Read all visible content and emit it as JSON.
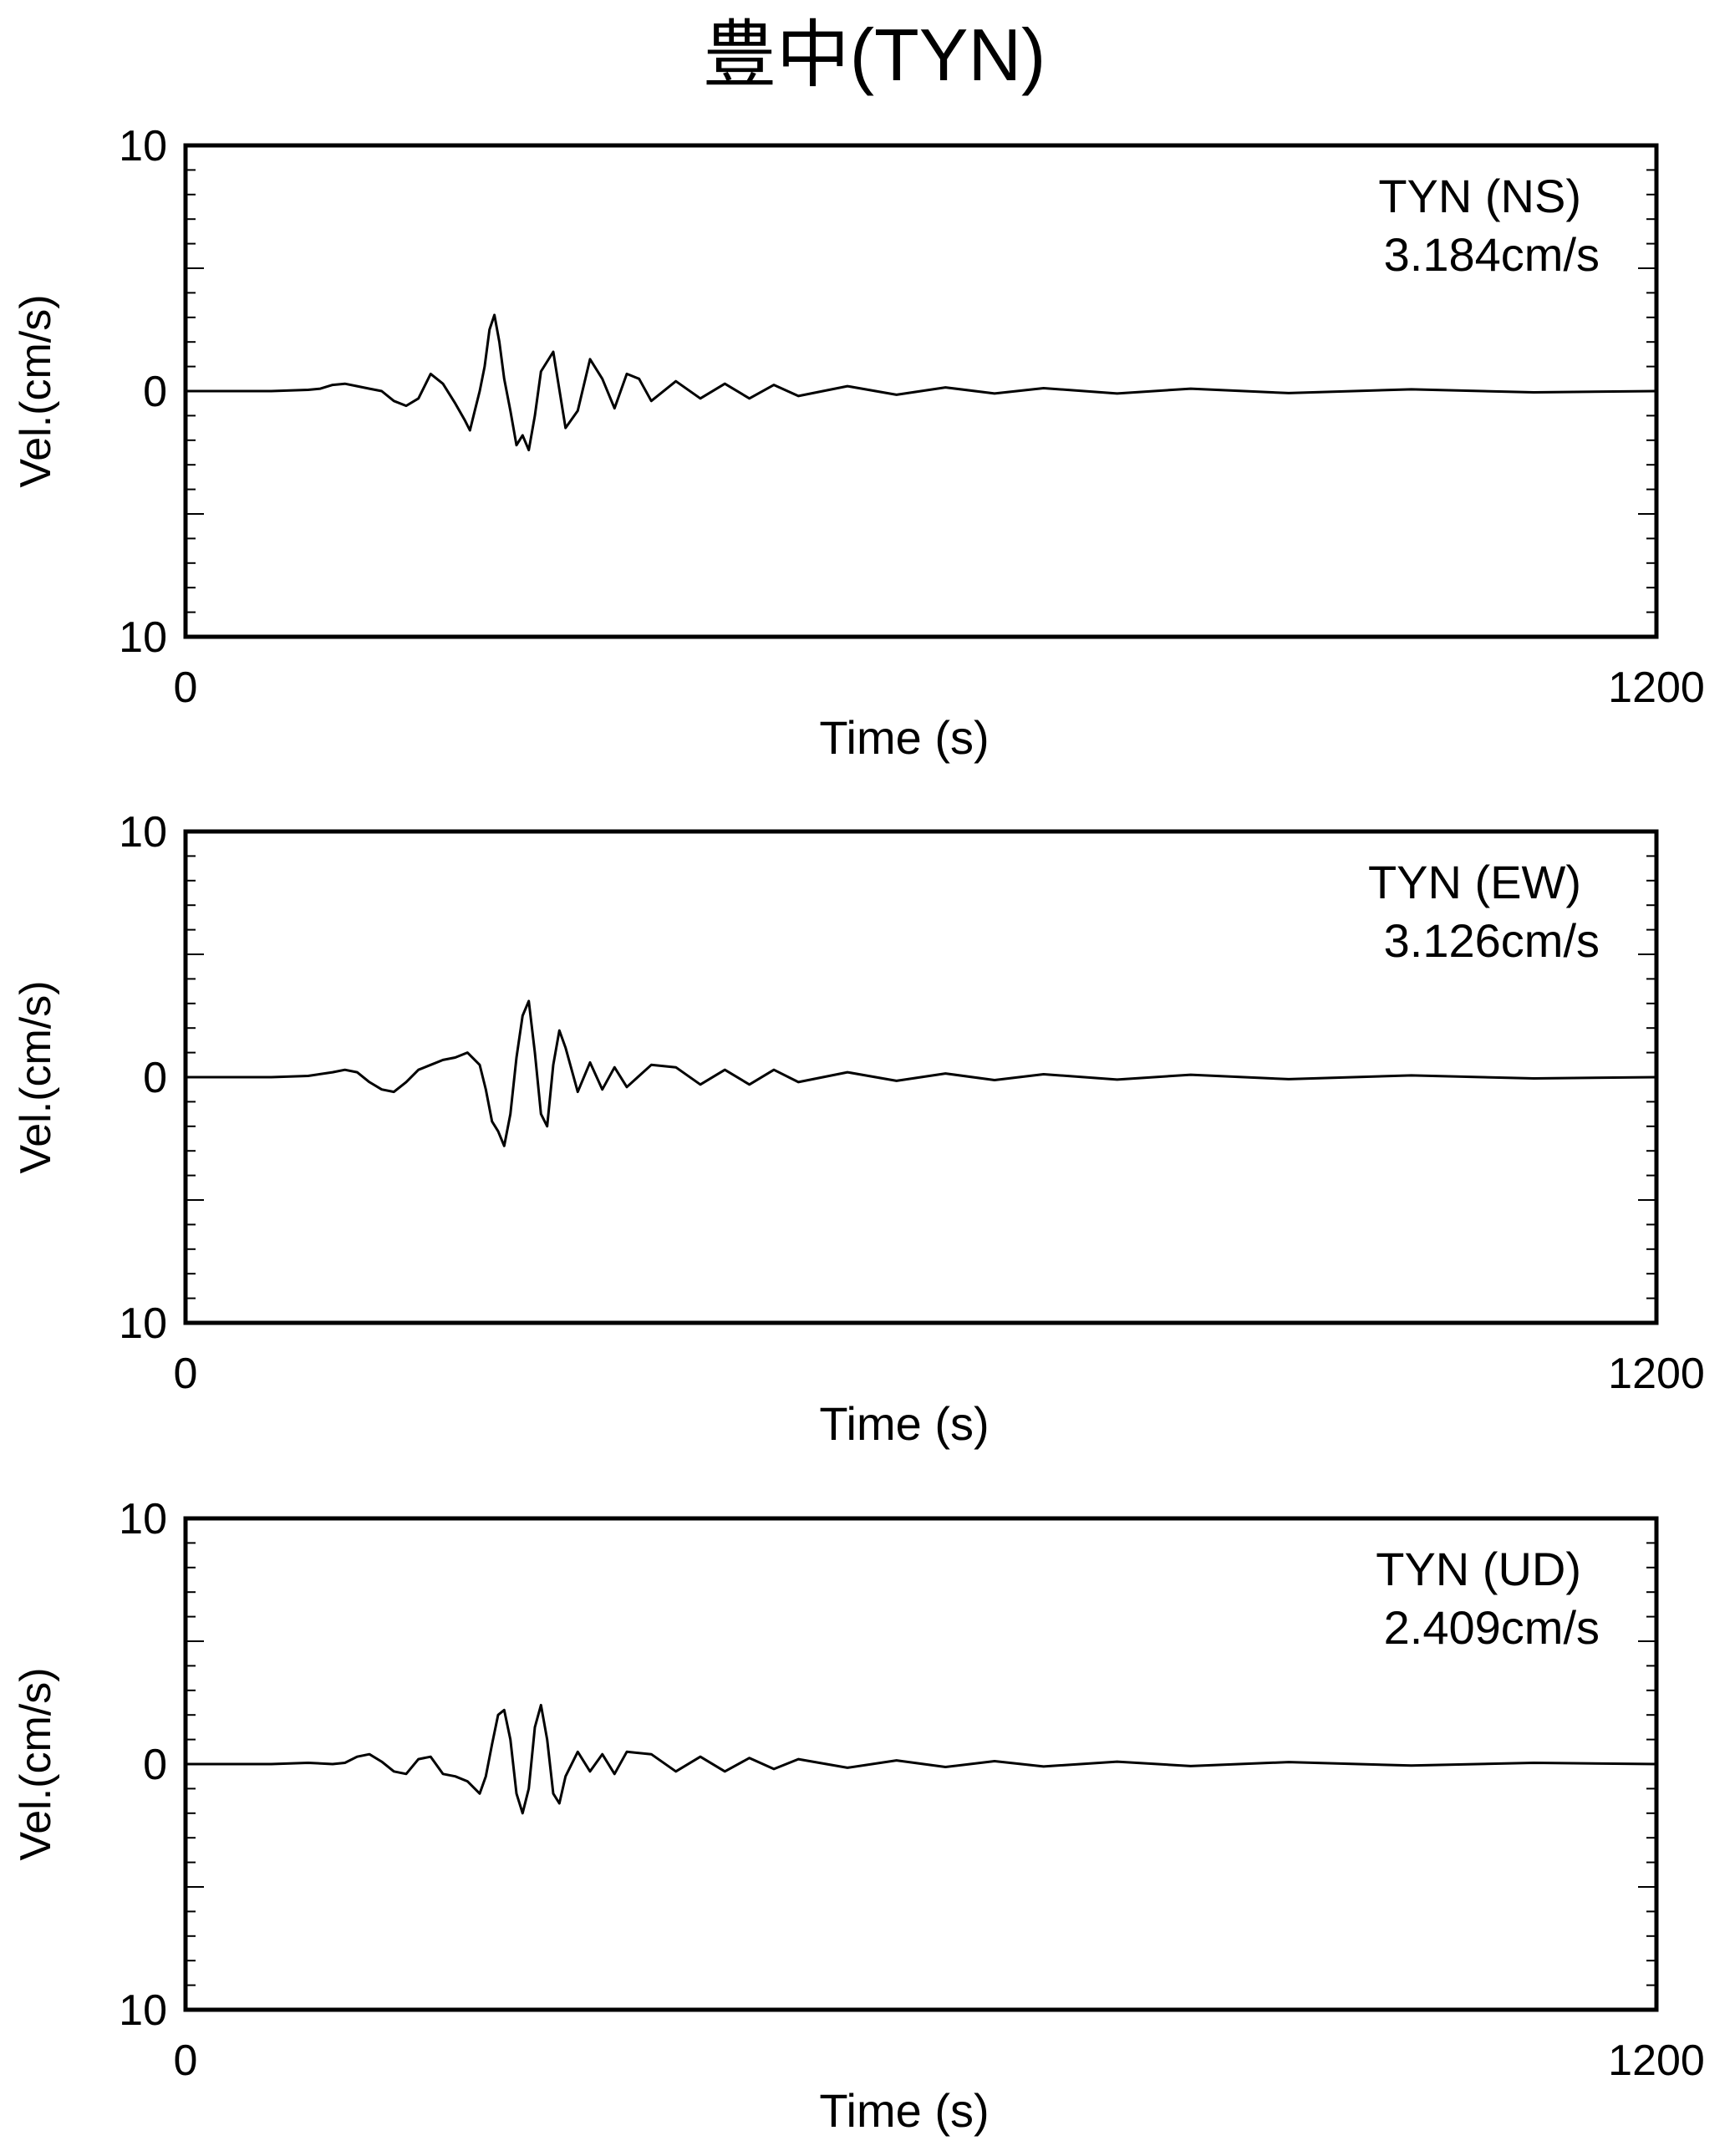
{
  "page": {
    "title": "豊中(TYN)"
  },
  "chart_data": [
    {
      "type": "line",
      "title": "",
      "xlabel": "Time (s)",
      "ylabel": "Vel.(cm/s)",
      "xlim": [
        0,
        1200
      ],
      "ylim": [
        -10,
        10
      ],
      "x_tick_labels": [
        "0",
        "1200"
      ],
      "y_tick_labels": [
        "10",
        "0",
        "10"
      ],
      "annotation_name": "TYN  (NS)",
      "annotation_value": "3.184cm/s",
      "color": "#000000",
      "series": [
        {
          "x": [
            0,
            50,
            70,
            100,
            110,
            120,
            130,
            140,
            150,
            160,
            170,
            180,
            190,
            200,
            210,
            220,
            228,
            232,
            236,
            240,
            244,
            248,
            252,
            256,
            260,
            265,
            270,
            275,
            280,
            285,
            290,
            300,
            310,
            320,
            330,
            340,
            350,
            360,
            370,
            380,
            400,
            420,
            440,
            460,
            480,
            500,
            540,
            580,
            620,
            660,
            700,
            760,
            820,
            900,
            1000,
            1100,
            1200
          ],
          "values": [
            0,
            0,
            0,
            0.05,
            0.1,
            0.25,
            0.3,
            0.2,
            0.1,
            0,
            -0.4,
            -0.6,
            -0.3,
            0.7,
            0.3,
            -0.5,
            -1.2,
            -1.6,
            -0.8,
            0,
            1.0,
            2.5,
            3.1,
            2.0,
            0.5,
            -0.8,
            -2.2,
            -1.8,
            -2.4,
            -1.0,
            0.8,
            1.6,
            -1.5,
            -0.8,
            1.3,
            0.5,
            -0.7,
            0.7,
            0.5,
            -0.4,
            0.4,
            -0.3,
            0.3,
            -0.3,
            0.25,
            -0.2,
            0.2,
            -0.15,
            0.15,
            -0.1,
            0.12,
            -0.1,
            0.1,
            -0.08,
            0.07,
            -0.05,
            0
          ]
        }
      ]
    },
    {
      "type": "line",
      "title": "",
      "xlabel": "Time (s)",
      "ylabel": "Vel.(cm/s)",
      "xlim": [
        0,
        1200
      ],
      "ylim": [
        -10,
        10
      ],
      "x_tick_labels": [
        "0",
        "1200"
      ],
      "y_tick_labels": [
        "10",
        "0",
        "10"
      ],
      "annotation_name": "TYN  (EW)",
      "annotation_value": "3.126cm/s",
      "color": "#000000",
      "series": [
        {
          "x": [
            0,
            50,
            70,
            100,
            120,
            130,
            140,
            150,
            160,
            170,
            180,
            190,
            200,
            210,
            220,
            230,
            240,
            245,
            250,
            255,
            260,
            265,
            270,
            275,
            280,
            285,
            290,
            295,
            300,
            305,
            310,
            320,
            330,
            340,
            350,
            360,
            380,
            400,
            420,
            440,
            460,
            480,
            500,
            540,
            580,
            620,
            660,
            700,
            760,
            820,
            900,
            1000,
            1100,
            1200
          ],
          "values": [
            0,
            0,
            0,
            0.05,
            0.2,
            0.3,
            0.2,
            -0.2,
            -0.5,
            -0.6,
            -0.2,
            0.3,
            0.5,
            0.7,
            0.8,
            1.0,
            0.5,
            -0.5,
            -1.8,
            -2.2,
            -2.8,
            -1.5,
            0.8,
            2.5,
            3.1,
            1.0,
            -1.5,
            -2.0,
            0.5,
            1.9,
            1.2,
            -0.6,
            0.6,
            -0.5,
            0.4,
            -0.4,
            0.5,
            0.4,
            -0.3,
            0.3,
            -0.3,
            0.3,
            -0.2,
            0.2,
            -0.15,
            0.15,
            -0.12,
            0.12,
            -0.1,
            0.1,
            -0.08,
            0.07,
            -0.05,
            0
          ]
        }
      ]
    },
    {
      "type": "line",
      "title": "",
      "xlabel": "Time (s)",
      "ylabel": "Vel.(cm/s)",
      "xlim": [
        0,
        1200
      ],
      "ylim": [
        -10,
        10
      ],
      "x_tick_labels": [
        "0",
        "1200"
      ],
      "y_tick_labels": [
        "10",
        "0",
        "10"
      ],
      "annotation_name": "TYN  (UD)",
      "annotation_value": "2.409cm/s",
      "color": "#000000",
      "series": [
        {
          "x": [
            0,
            50,
            70,
            100,
            120,
            130,
            140,
            150,
            160,
            170,
            180,
            190,
            200,
            210,
            220,
            230,
            240,
            245,
            250,
            255,
            260,
            265,
            270,
            275,
            280,
            285,
            290,
            295,
            300,
            305,
            310,
            320,
            330,
            340,
            350,
            360,
            380,
            400,
            420,
            440,
            460,
            480,
            500,
            540,
            580,
            620,
            660,
            700,
            760,
            820,
            900,
            1000,
            1100,
            1200
          ],
          "values": [
            0,
            0,
            0,
            0.05,
            0,
            0.05,
            0.3,
            0.4,
            0.1,
            -0.3,
            -0.4,
            0.2,
            0.3,
            -0.4,
            -0.5,
            -0.7,
            -1.2,
            -0.5,
            0.8,
            2.0,
            2.2,
            1.0,
            -1.2,
            -2.0,
            -1.0,
            1.5,
            2.4,
            1.0,
            -1.2,
            -1.6,
            -0.5,
            0.5,
            -0.3,
            0.4,
            -0.4,
            0.5,
            0.4,
            -0.3,
            0.3,
            -0.3,
            0.25,
            -0.2,
            0.2,
            -0.15,
            0.15,
            -0.12,
            0.12,
            -0.1,
            0.1,
            -0.08,
            0.08,
            -0.06,
            0.05,
            0
          ]
        }
      ]
    }
  ]
}
